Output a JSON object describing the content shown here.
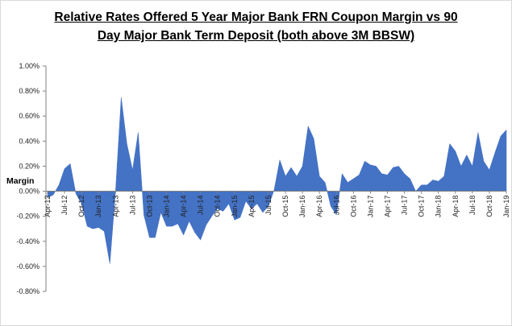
{
  "chart_data": {
    "type": "area",
    "title_lines": [
      "Relative Rates Offered 5 Year Major  Bank FRN Coupon  Margin vs 90",
      "Day Major  Bank Term Deposit (both above 3M BBSW)"
    ],
    "ylabel": "Margin",
    "xlabel": "",
    "ylim": [
      -0.8,
      1.0
    ],
    "y_ticks": [
      "1.00%",
      "0.80%",
      "0.60%",
      "0.40%",
      "0.20%",
      "0.00%",
      "-0.20%",
      "-0.40%",
      "-0.60%",
      "-0.80%"
    ],
    "x_ticks": [
      "Apr-12",
      "Jul-12",
      "Oct-12",
      "Jan-13",
      "Apr-13",
      "Jul-13",
      "Oct-13",
      "Jan-14",
      "Apr-14",
      "Jul-14",
      "Oct-14",
      "Jan-15",
      "Apr-15",
      "Jul-15",
      "Oct-15",
      "Jan-16",
      "Apr-16",
      "Jul-16",
      "Oct-16",
      "Jan-17",
      "Apr-17",
      "Jul-17",
      "Oct-17",
      "Jan-18",
      "Apr-18",
      "Jul-18",
      "Oct-18",
      "Jan-19"
    ],
    "grid": false,
    "color": "#4472c4",
    "series": [
      {
        "name": "",
        "values": [
          -0.05,
          -0.03,
          0.05,
          0.18,
          0.22,
          -0.02,
          -0.1,
          -0.28,
          -0.3,
          -0.29,
          -0.32,
          -0.58,
          0.0,
          0.75,
          0.38,
          0.17,
          0.47,
          -0.19,
          -0.37,
          -0.37,
          -0.17,
          -0.28,
          -0.28,
          -0.26,
          -0.35,
          -0.24,
          -0.33,
          -0.39,
          -0.27,
          -0.2,
          -0.14,
          -0.16,
          -0.1,
          -0.23,
          -0.21,
          -0.08,
          -0.14,
          -0.1,
          -0.17,
          -0.12,
          0.01,
          0.25,
          0.12,
          0.19,
          0.12,
          0.2,
          0.52,
          0.42,
          0.12,
          0.07,
          -0.12,
          -0.19,
          0.14,
          0.07,
          0.1,
          0.13,
          0.24,
          0.21,
          0.2,
          0.14,
          0.13,
          0.19,
          0.2,
          0.14,
          0.1,
          0.0,
          0.05,
          0.05,
          0.09,
          0.08,
          0.12,
          0.38,
          0.32,
          0.2,
          0.29,
          0.2,
          0.47,
          0.24,
          0.17,
          0.31,
          0.44,
          0.49
        ]
      }
    ]
  }
}
